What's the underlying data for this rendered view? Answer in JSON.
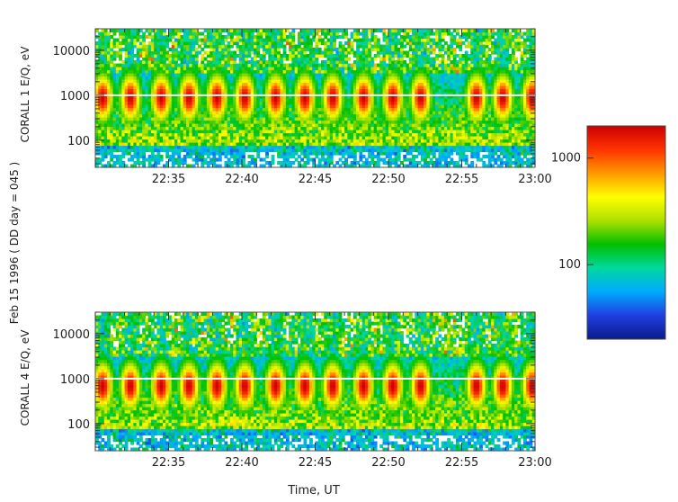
{
  "figure": {
    "side_label": "Feb 15 1996  ( DD day = 045 )",
    "xlabel": "Time, UT"
  },
  "colorbar": {
    "ticks": [
      {
        "value": 1000,
        "label": "1000"
      },
      {
        "value": 100,
        "label": "100"
      }
    ],
    "range": [
      20,
      2000
    ],
    "colors": [
      "#0a1a8c",
      "#1f3fe0",
      "#00aaff",
      "#00d8a0",
      "#00c000",
      "#aee000",
      "#ffff00",
      "#ff9900",
      "#ff3300",
      "#cc0000"
    ]
  },
  "chart_data": [
    {
      "type": "heatmap",
      "title": "",
      "ylabel": "CORALL 1 E/Q, eV",
      "xlabel": "",
      "x_ticks": [
        "22:35",
        "22:40",
        "22:45",
        "22:50",
        "22:55",
        "23:00"
      ],
      "y_ticks": [
        "10000",
        "1000",
        "100"
      ],
      "y_scale": "log",
      "ylim": [
        25,
        30000
      ],
      "xlim": [
        "22:30",
        "23:00"
      ],
      "burst_times": [
        "22:30.5",
        "22:32.4",
        "22:34.5",
        "22:36.4",
        "22:38.3",
        "22:40.2",
        "22:42.3",
        "22:44.3",
        "22:46.2",
        "22:48.3",
        "22:50.3",
        "22:52.2",
        "22:56.0",
        "22:57.8",
        "22:59.8"
      ],
      "peak_energy_eV": 900
    },
    {
      "type": "heatmap",
      "title": "",
      "ylabel": "CORALL 4  E/Q, eV",
      "xlabel": "Time, UT",
      "x_ticks": [
        "22:35",
        "22:40",
        "22:45",
        "22:50",
        "22:55",
        "23:00"
      ],
      "y_ticks": [
        "10000",
        "1000",
        "100"
      ],
      "y_scale": "log",
      "ylim": [
        25,
        30000
      ],
      "xlim": [
        "22:30",
        "23:00"
      ],
      "burst_times": [
        "22:30.5",
        "22:32.4",
        "22:34.5",
        "22:36.4",
        "22:38.3",
        "22:40.2",
        "22:42.3",
        "22:44.3",
        "22:46.2",
        "22:48.3",
        "22:50.3",
        "22:52.2",
        "22:56.0",
        "22:57.8",
        "22:59.8"
      ],
      "peak_energy_eV": 700
    }
  ]
}
